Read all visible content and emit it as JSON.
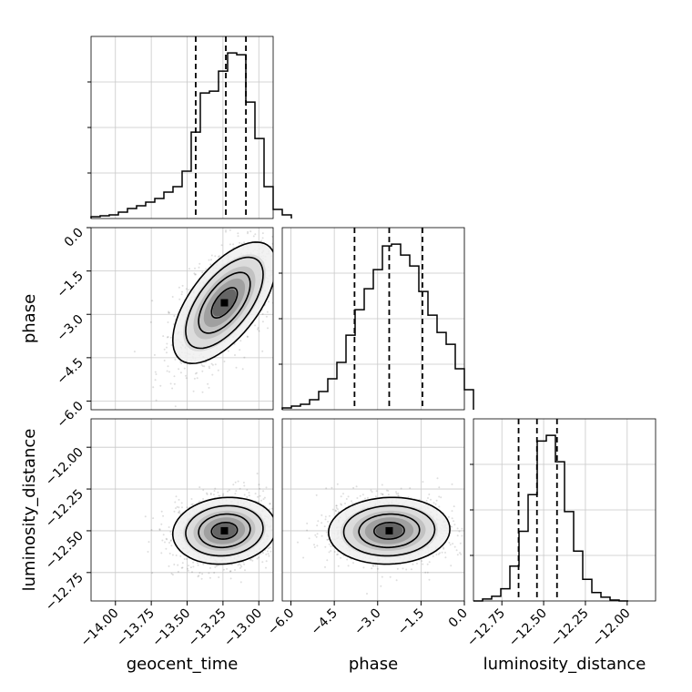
{
  "chart_data": {
    "type": "corner",
    "parameters": [
      {
        "name": "geocent_time",
        "range": [
          -14.17,
          -12.9
        ],
        "ticks": [
          "−14.00",
          "−13.75",
          "−13.50",
          "−13.25",
          "−13.00"
        ],
        "tick_values": [
          -14.0,
          -13.75,
          -13.5,
          -13.25,
          -13.0
        ],
        "quantiles": [
          -13.44,
          -13.23,
          -13.09
        ]
      },
      {
        "name": "phase",
        "range": [
          -6.3,
          0.0
        ],
        "ticks": [
          "−6.0",
          "−4.5",
          "−3.0",
          "−1.5",
          "0.0"
        ],
        "tick_values": [
          -6.0,
          -4.5,
          -3.0,
          -1.5,
          0.0
        ],
        "quantiles": [
          -3.8,
          -2.6,
          -1.45
        ]
      },
      {
        "name": "luminosity_distance",
        "range": [
          -12.92,
          -11.83
        ],
        "ticks": [
          "−12.75",
          "−12.50",
          "−12.25",
          "−12.00"
        ],
        "tick_values": [
          -12.75,
          -12.5,
          -12.25,
          -12.0
        ],
        "quantiles": [
          -12.65,
          -12.54,
          -12.42
        ]
      }
    ],
    "histograms": [
      {
        "param": "geocent_time",
        "edges_from": -14.17,
        "bin_width": 0.0635,
        "counts": [
          2,
          3,
          4,
          7,
          11,
          14,
          18,
          22,
          29,
          35,
          52,
          95,
          138,
          140,
          162,
          182,
          180,
          128,
          88,
          35,
          10,
          4
        ]
      },
      {
        "param": "phase",
        "edges_from": -6.3,
        "bin_width": 0.315,
        "counts": [
          2,
          4,
          6,
          11,
          20,
          34,
          52,
          82,
          110,
          133,
          154,
          180,
          182,
          170,
          158,
          130,
          104,
          85,
          72,
          45,
          22
        ]
      },
      {
        "param": "luminosity_distance",
        "edges_from": -12.92,
        "bin_width": 0.0545,
        "counts": [
          0,
          2,
          5,
          13,
          37,
          74,
          113,
          170,
          176,
          148,
          95,
          53,
          23,
          9,
          4,
          1,
          0
        ]
      }
    ],
    "joint": [
      {
        "x": "geocent_time",
        "y": "phase",
        "mean": [
          -13.24,
          -2.6
        ],
        "sd": [
          0.18,
          1.05
        ],
        "corr": 0.62
      },
      {
        "x": "geocent_time",
        "y": "luminosity_distance",
        "mean": [
          -13.24,
          -12.5
        ],
        "sd": [
          0.18,
          0.1
        ],
        "corr": 0.1
      },
      {
        "x": "phase",
        "y": "luminosity_distance",
        "mean": [
          -2.6,
          -12.5
        ],
        "sd": [
          1.05,
          0.1
        ],
        "corr": 0.05
      }
    ],
    "grid": true
  }
}
